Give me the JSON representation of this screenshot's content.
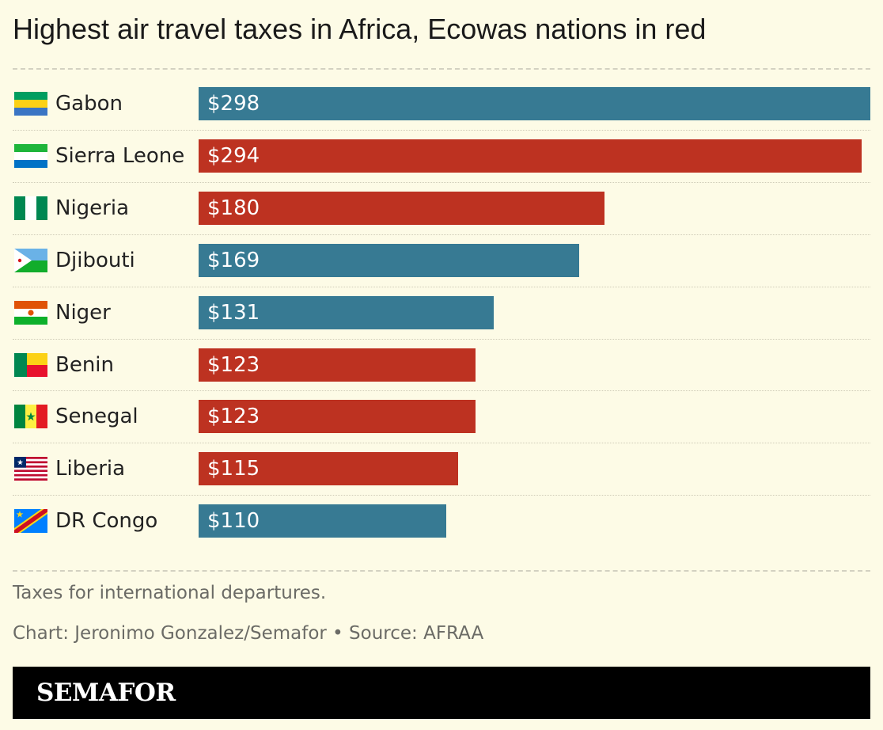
{
  "title": "Highest air travel taxes in Africa, Ecowas nations in red",
  "note": "Taxes for international departures.",
  "credit": "Chart: Jeronimo Gonzalez/Semafor • Source: AFRAA",
  "brand": "SEMAFOR",
  "colors": {
    "ecowas": "#bd3221",
    "other": "#377a93",
    "background": "#fdfbe6"
  },
  "chart_data": {
    "type": "bar",
    "orientation": "horizontal",
    "title": "Highest air travel taxes in Africa, Ecowas nations in red",
    "categories": [
      "Gabon",
      "Sierra Leone",
      "Nigeria",
      "Djibouti",
      "Niger",
      "Benin",
      "Senegal",
      "Liberia",
      "DR Congo"
    ],
    "values": [
      298,
      294,
      180,
      169,
      131,
      123,
      123,
      115,
      110
    ],
    "value_labels": [
      "$298",
      "$294",
      "$180",
      "$169",
      "$131",
      "$123",
      "$123",
      "$115",
      "$110"
    ],
    "ecowas": [
      false,
      true,
      true,
      false,
      false,
      true,
      true,
      true,
      false
    ],
    "flag_icons": [
      "gabon-flag-icon",
      "sierra-leone-flag-icon",
      "nigeria-flag-icon",
      "djibouti-flag-icon",
      "niger-flag-icon",
      "benin-flag-icon",
      "senegal-flag-icon",
      "liberia-flag-icon",
      "dr-congo-flag-icon"
    ],
    "xlim": [
      0,
      298
    ],
    "grid": false,
    "legend": "none"
  }
}
